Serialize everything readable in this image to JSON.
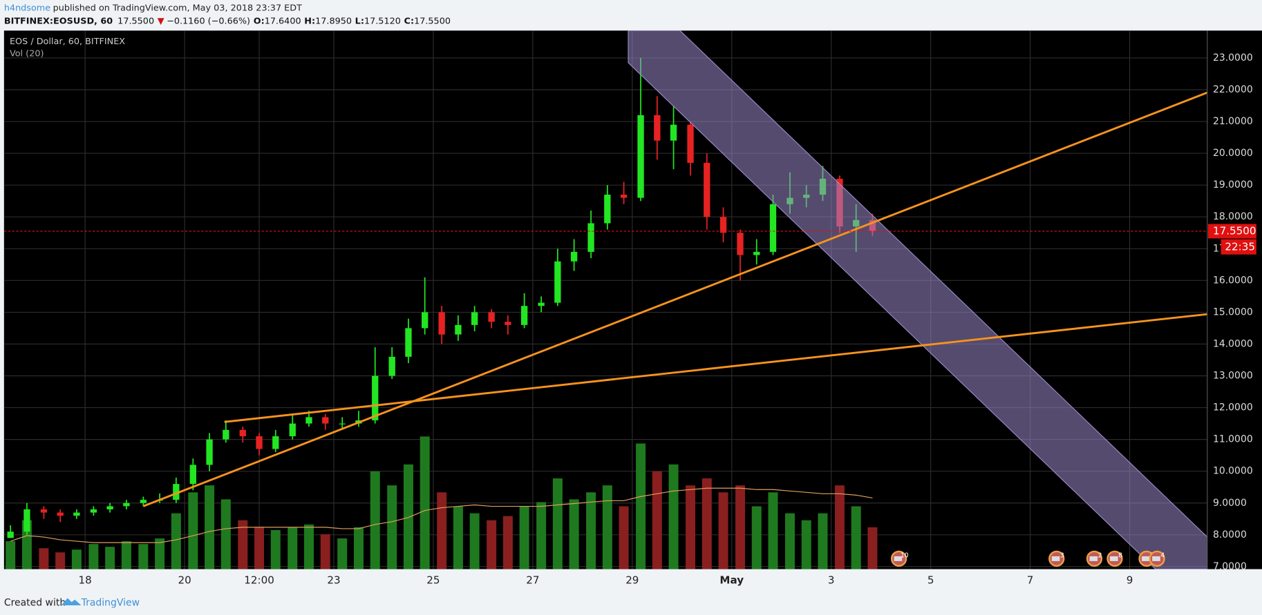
{
  "header": {
    "author": "h4ndsome",
    "published": "published on TradingView.com, May 03, 2018 23:37 EDT",
    "symbol": "BITFINEX:EOSUSD, 60",
    "last": "17.5500",
    "change_arrow": "▼",
    "change": "−0.1160 (−0.66%)",
    "ohlc": [
      {
        "label": "O:",
        "value": "17.6400"
      },
      {
        "label": "H:",
        "value": "17.8950"
      },
      {
        "label": "L:",
        "value": "17.5120"
      },
      {
        "label": "C:",
        "value": "17.5500"
      }
    ]
  },
  "footer": {
    "created": "Created with",
    "brand": "TradingView"
  },
  "chart_data": {
    "type": "candlestick",
    "title": "EOS / Dollar, 60, BITFINEX",
    "subtitle": "Vol (20)",
    "x": [
      16.5,
      16.83,
      17.17,
      17.5,
      17.83,
      18.17,
      18.5,
      18.83,
      19.17,
      19.5,
      19.83,
      20.17,
      20.5,
      20.83,
      21.17,
      21.5,
      21.83,
      22.17,
      22.5,
      22.83,
      23.17,
      23.5,
      23.83,
      24.17,
      24.5,
      24.83,
      25.17,
      25.5,
      25.83,
      26.17,
      26.5,
      26.83,
      27.17,
      27.5,
      27.83,
      28.17,
      28.5,
      28.83,
      29.17,
      29.5,
      29.83,
      30.17,
      30.5,
      30.83,
      31.17,
      31.5,
      31.83,
      32.17,
      32.5,
      32.83,
      33.17,
      33.5,
      33.83
    ],
    "open": [
      7.9,
      8.1,
      8.8,
      8.7,
      8.6,
      8.7,
      8.8,
      8.9,
      9.0,
      9.1,
      9.1,
      9.6,
      10.2,
      11.0,
      11.3,
      11.1,
      10.7,
      11.1,
      11.5,
      11.7,
      11.5,
      11.5,
      11.6,
      13.0,
      13.6,
      14.5,
      15.0,
      14.3,
      14.6,
      15.0,
      14.7,
      14.6,
      15.2,
      15.3,
      16.6,
      16.9,
      17.8,
      18.7,
      18.6,
      21.2,
      20.4,
      20.9,
      19.7,
      18.0,
      17.5,
      16.8,
      16.9,
      18.4,
      18.6,
      18.7,
      19.2,
      17.7,
      17.9
    ],
    "high": [
      8.3,
      9.0,
      8.9,
      8.8,
      8.8,
      8.9,
      9.0,
      9.1,
      9.2,
      9.3,
      9.8,
      10.4,
      11.2,
      11.6,
      11.4,
      11.2,
      11.3,
      11.8,
      11.9,
      11.8,
      11.7,
      11.9,
      13.9,
      13.9,
      14.8,
      16.1,
      15.2,
      14.9,
      15.2,
      15.1,
      14.9,
      15.6,
      15.5,
      17.0,
      17.3,
      18.2,
      19.0,
      19.1,
      23.0,
      21.8,
      21.5,
      21.0,
      20.0,
      18.3,
      17.6,
      17.3,
      18.7,
      19.4,
      19.0,
      19.6,
      19.3,
      18.4,
      18.1
    ],
    "low": [
      7.9,
      8.0,
      8.5,
      8.4,
      8.5,
      8.6,
      8.7,
      8.8,
      8.9,
      9.0,
      9.0,
      9.4,
      10.0,
      10.9,
      10.9,
      10.5,
      10.6,
      11.0,
      11.4,
      11.3,
      11.3,
      11.4,
      11.5,
      12.9,
      13.4,
      14.3,
      14.0,
      14.1,
      14.4,
      14.5,
      14.3,
      14.5,
      15.0,
      15.2,
      16.3,
      16.7,
      17.6,
      18.4,
      18.5,
      19.8,
      19.5,
      19.3,
      17.6,
      17.2,
      16.0,
      16.5,
      16.8,
      18.1,
      18.3,
      18.5,
      17.5,
      16.9,
      17.4
    ],
    "close": [
      8.1,
      8.8,
      8.7,
      8.6,
      8.7,
      8.8,
      8.9,
      9.0,
      9.1,
      9.1,
      9.6,
      10.2,
      11.0,
      11.3,
      11.1,
      10.7,
      11.1,
      11.5,
      11.7,
      11.5,
      11.5,
      11.6,
      13.0,
      13.6,
      14.5,
      15.0,
      14.3,
      14.6,
      15.0,
      14.7,
      14.6,
      15.2,
      15.3,
      16.6,
      16.9,
      17.8,
      18.7,
      18.6,
      21.2,
      20.4,
      20.9,
      19.7,
      18.0,
      17.5,
      16.8,
      16.9,
      18.4,
      18.6,
      18.7,
      19.2,
      17.7,
      17.9,
      17.55
    ],
    "volume": [
      20,
      35,
      15,
      12,
      14,
      18,
      16,
      20,
      18,
      22,
      40,
      55,
      60,
      50,
      35,
      30,
      28,
      30,
      32,
      25,
      22,
      30,
      70,
      60,
      75,
      95,
      55,
      45,
      40,
      35,
      38,
      45,
      48,
      65,
      50,
      55,
      60,
      45,
      90,
      70,
      75,
      60,
      65,
      55,
      60,
      45,
      55,
      40,
      35,
      40,
      60,
      45,
      30
    ],
    "volume_ma": [
      20,
      24,
      23,
      21,
      20,
      19,
      19,
      19,
      19,
      19,
      21,
      24,
      27,
      29,
      30,
      30,
      30,
      30,
      30,
      30,
      29,
      29,
      32,
      34,
      37,
      42,
      44,
      45,
      46,
      45,
      45,
      45,
      45,
      46,
      47,
      48,
      49,
      49,
      52,
      54,
      56,
      57,
      58,
      58,
      58,
      57,
      57,
      56,
      55,
      54,
      54,
      53,
      51
    ],
    "up_color": "#22e622",
    "down_color": "#e62222",
    "volume_up_color": "#1f7a1f",
    "volume_down_color": "#8a1f1f",
    "volume_ma_color": "#e0a060",
    "xlim": [
      16.37,
      40.56
    ],
    "ylim": [
      6.92,
      23.86
    ],
    "xticks": [
      18,
      20,
      {
        "value": 21.5,
        "label": "12:00"
      },
      23,
      25,
      27,
      29,
      {
        "value": 31,
        "label": "May"
      },
      {
        "value": 33,
        "label": "3"
      },
      {
        "value": 35,
        "label": "5"
      },
      {
        "value": 37,
        "label": "7"
      },
      {
        "value": 39,
        "label": "9"
      }
    ],
    "yticks": [
      {
        "value": 7,
        "label": "7.0000"
      },
      {
        "value": 8,
        "label": "8.0000"
      },
      {
        "value": 9,
        "label": "9.0000"
      },
      {
        "value": 10,
        "label": "10.0000"
      },
      {
        "value": 11,
        "label": "11.0000"
      },
      {
        "value": 12,
        "label": "12.0000"
      },
      {
        "value": 13,
        "label": "13.0000"
      },
      {
        "value": 14,
        "label": "14.0000"
      },
      {
        "value": 15,
        "label": "15.0000"
      },
      {
        "value": 16,
        "label": "16.0000"
      },
      {
        "value": 17,
        "label": "17.0000"
      },
      {
        "value": 18,
        "label": "18.0000"
      },
      {
        "value": 19,
        "label": "19.0000"
      },
      {
        "value": 20,
        "label": "20.0000"
      },
      {
        "value": 21,
        "label": "21.0000"
      },
      {
        "value": 22,
        "label": "22.0000"
      },
      {
        "value": 23,
        "label": "23.0000"
      }
    ],
    "grid": true,
    "last_price": {
      "value": 17.55,
      "label": "17.5500"
    },
    "countdown": "22:35",
    "last_price_color": "#e01010",
    "trendlines": [
      {
        "x": [
          19.17,
          40.56
        ],
        "y": [
          8.9,
          21.91
        ]
      },
      {
        "x": [
          20.8,
          40.56
        ],
        "y": [
          11.55,
          14.94
        ]
      }
    ],
    "trendline_color": "#f7931e",
    "channel": {
      "x": [
        28.92,
        29.96,
        40.56,
        40.56,
        39.52,
        28.92
      ],
      "y": [
        23.86,
        23.86,
        7.93,
        6.92,
        6.92,
        22.85
      ],
      "color": "#9a88c8"
    },
    "events": [
      {
        "x": 34.36,
        "label": "10"
      },
      {
        "x": 37.53,
        "label": "3"
      },
      {
        "x": 38.29,
        "label": "2"
      },
      {
        "x": 38.7,
        "label": "8"
      },
      {
        "x": 39.34,
        "label": "5"
      },
      {
        "x": 39.55,
        "label": "4"
      }
    ]
  }
}
